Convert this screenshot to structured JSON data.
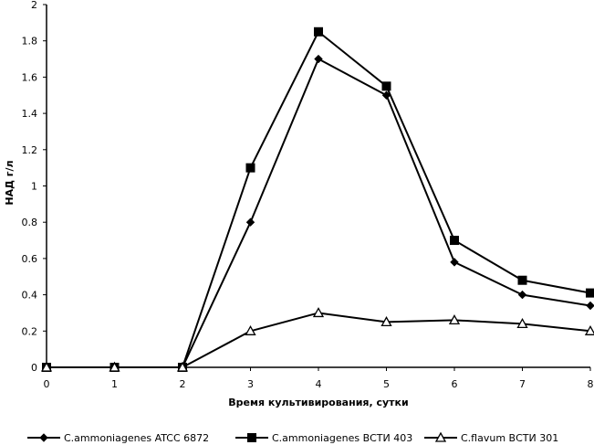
{
  "chart_data": {
    "type": "line",
    "title": "",
    "xlabel": "Время культивирования, сутки",
    "ylabel": "НАД г/л",
    "x": [
      0,
      1,
      2,
      3,
      4,
      5,
      6,
      7,
      8
    ],
    "xlim": [
      0,
      8
    ],
    "ylim": [
      0,
      2
    ],
    "x_ticks": [
      "0",
      "1",
      "2",
      "3",
      "4",
      "5",
      "6",
      "7",
      "8"
    ],
    "y_ticks": [
      "0",
      "0.2",
      "0.4",
      "0.6",
      "0.8",
      "1",
      "1.2",
      "1.4",
      "1.6",
      "1.8",
      "2"
    ],
    "grid": false,
    "legend_position": "bottom",
    "series": [
      {
        "name": "C.ammoniagenes ATCC 6872",
        "marker": "diamond",
        "color": "#000000",
        "values": [
          0,
          0,
          0,
          0.8,
          1.7,
          1.5,
          0.58,
          0.4,
          0.34
        ]
      },
      {
        "name": "C.ammoniagenes ВСТИ 403",
        "marker": "square",
        "color": "#000000",
        "values": [
          0,
          0,
          0,
          1.1,
          1.85,
          1.55,
          0.7,
          0.48,
          0.41
        ]
      },
      {
        "name": "C.flavum ВСТИ 301",
        "marker": "triangle",
        "color": "#000000",
        "values": [
          0,
          0,
          0,
          0.2,
          0.3,
          0.25,
          0.26,
          0.24,
          0.2
        ]
      }
    ]
  }
}
